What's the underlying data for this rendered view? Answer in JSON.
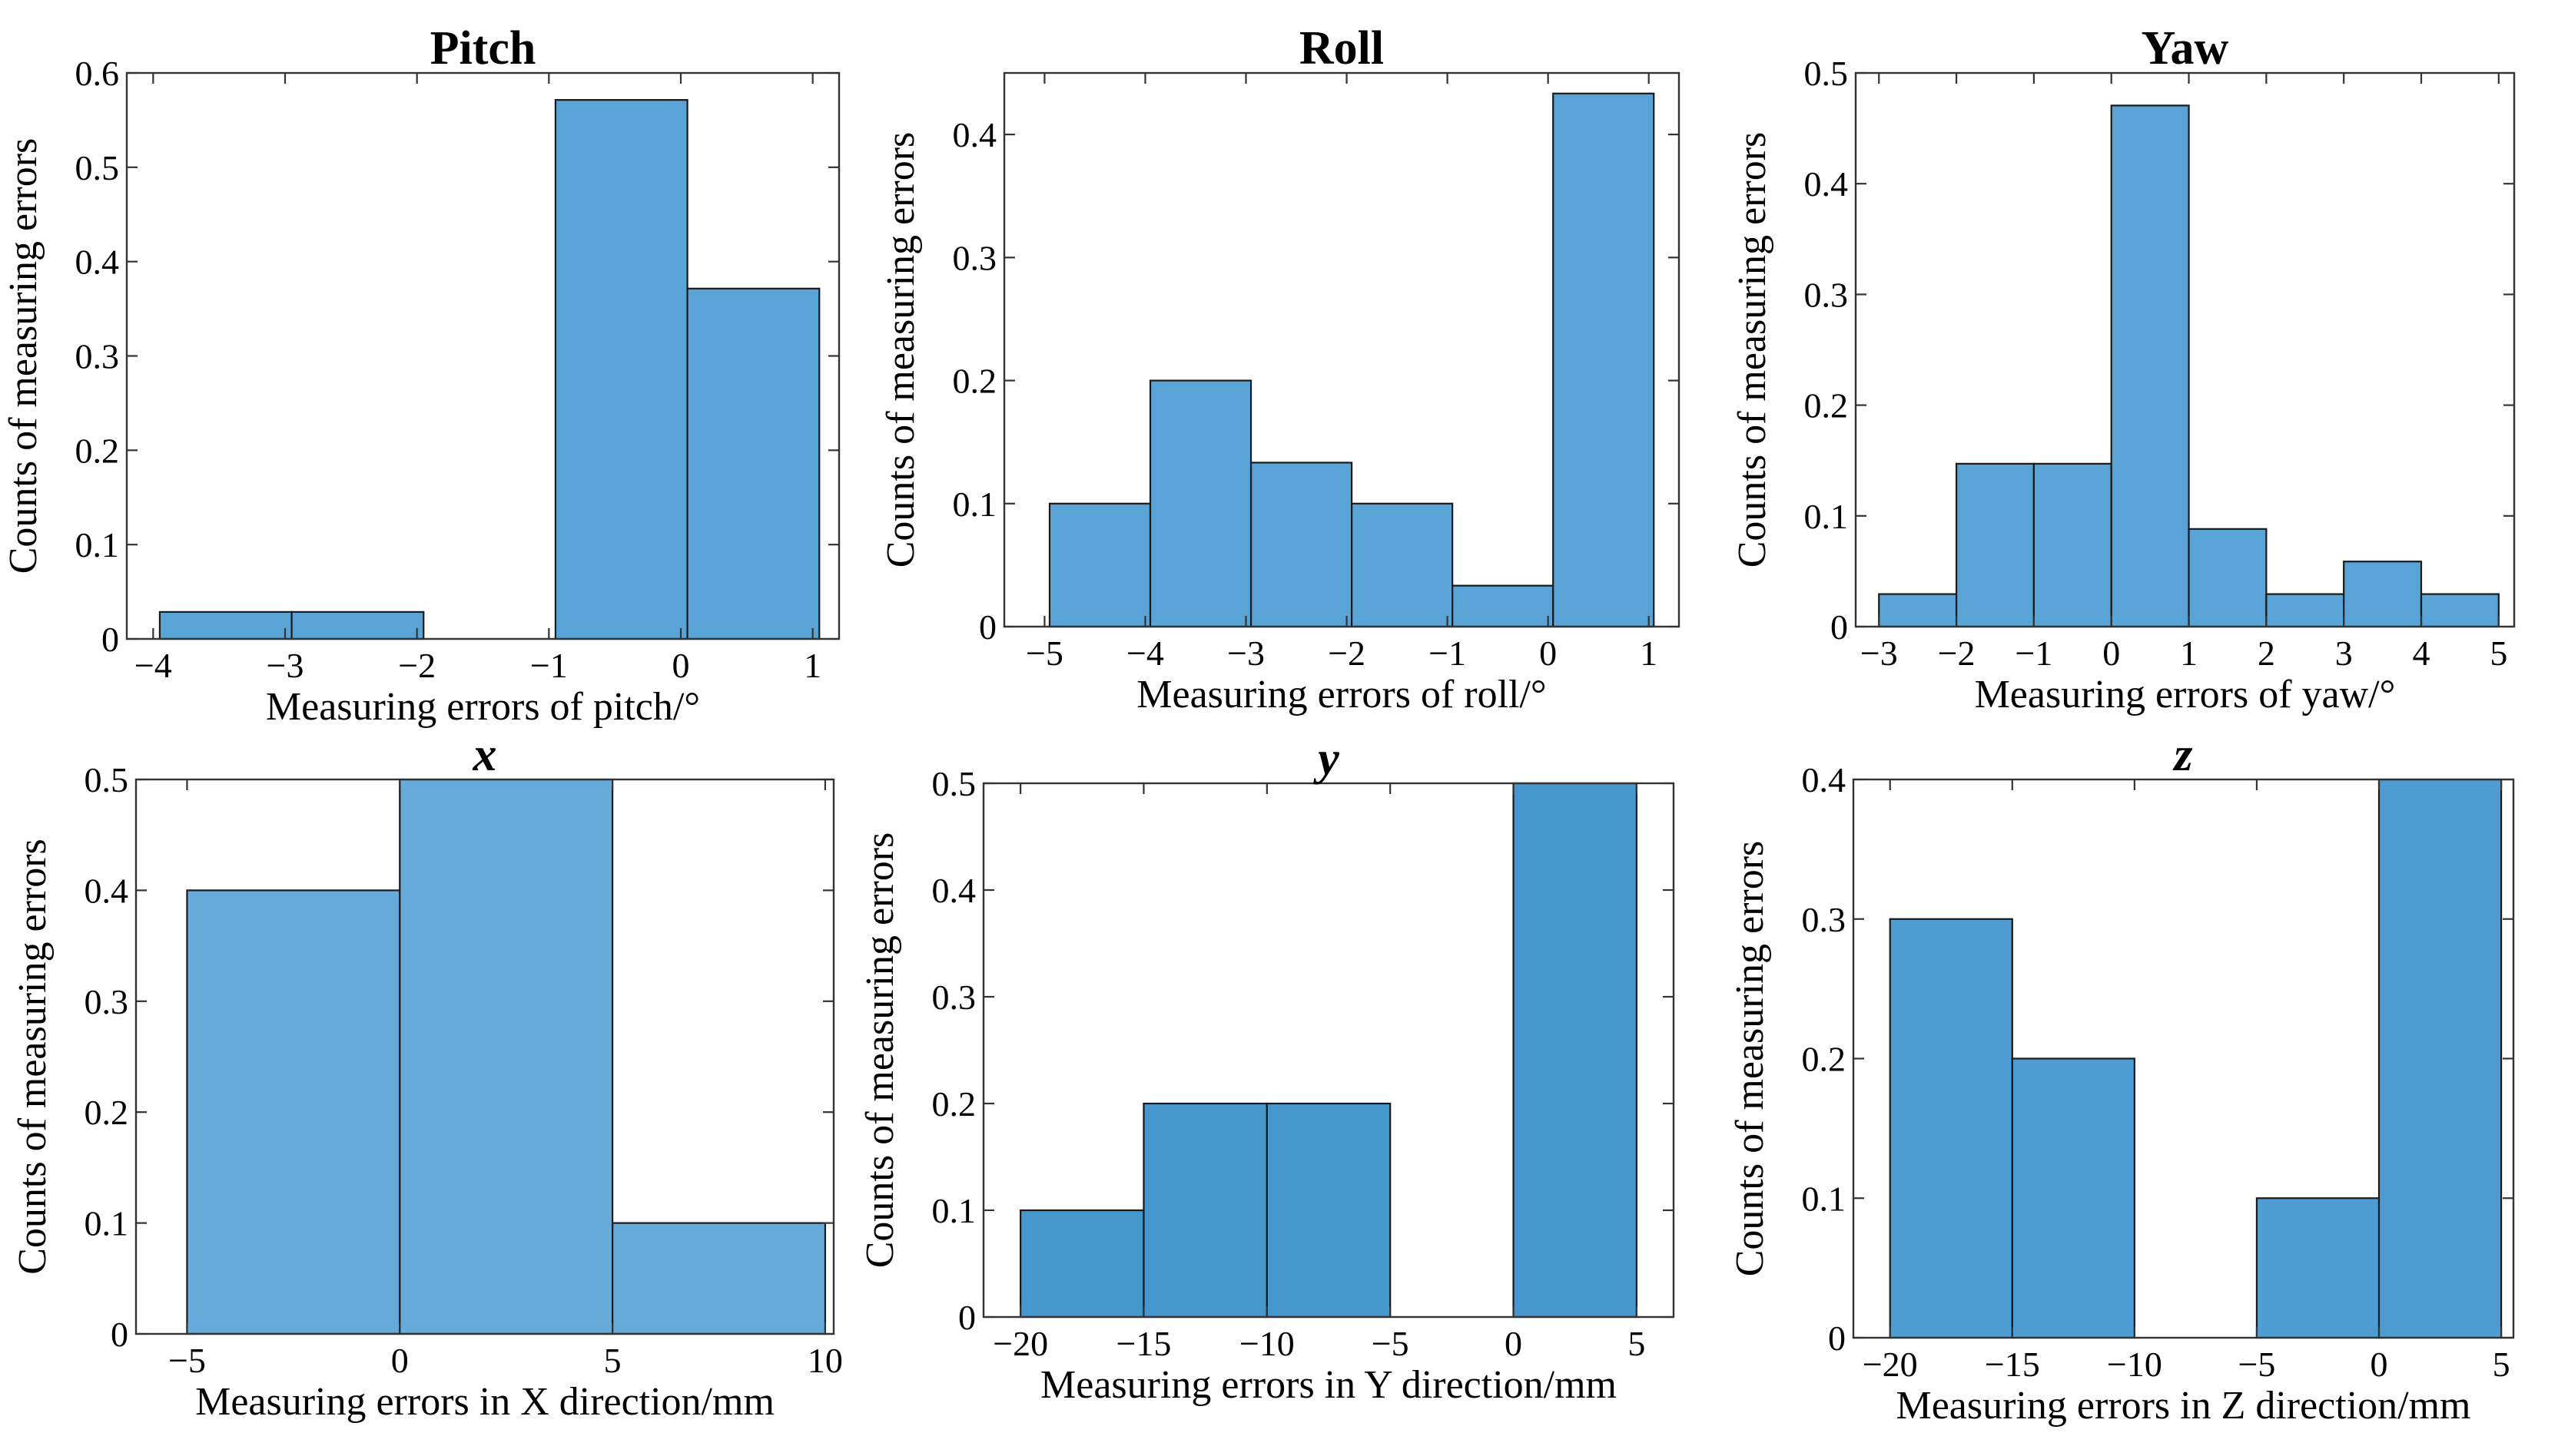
{
  "chart_data": [
    {
      "type": "bar",
      "title": "Pitch",
      "title_style": "normal",
      "xlabel": "Measuring errors of pitch/°",
      "ylabel": "Counts of measuring errors",
      "xlim": [
        -4.2,
        1.2
      ],
      "ylim": [
        0,
        0.6
      ],
      "xticks": [
        -4,
        -3,
        -2,
        -1,
        0,
        1
      ],
      "yticks": [
        0,
        0.1,
        0.2,
        0.3,
        0.4,
        0.5,
        0.6
      ],
      "ytick_labels": [
        "0",
        "0.1",
        "0.2",
        "0.3",
        "0.4",
        "0.5",
        "0.6"
      ],
      "bar_color": "#5aa3d6",
      "bins": [
        {
          "x0": -3.95,
          "x1": -2.95,
          "value": 0.0286
        },
        {
          "x0": -2.95,
          "x1": -1.95,
          "value": 0.0286
        },
        {
          "x0": -1.95,
          "x1": -0.95,
          "value": 0
        },
        {
          "x0": -0.95,
          "x1": 0.05,
          "value": 0.5714
        },
        {
          "x0": 0.05,
          "x1": 1.05,
          "value": 0.3714
        }
      ]
    },
    {
      "type": "bar",
      "title": "Roll",
      "title_style": "normal",
      "xlabel": "Measuring errors of roll/°",
      "ylabel": "Counts of measuring errors",
      "xlim": [
        -5.4,
        1.3
      ],
      "ylim": [
        0,
        0.45
      ],
      "xticks": [
        -5,
        -4,
        -3,
        -2,
        -1,
        0,
        1
      ],
      "yticks": [
        0,
        0.1,
        0.2,
        0.3,
        0.4
      ],
      "ytick_labels": [
        "0",
        "0.1",
        "0.2",
        "0.3",
        "0.4"
      ],
      "bar_color": "#5aa3d6",
      "bins": [
        {
          "x0": -4.95,
          "x1": -3.95,
          "value": 0.1
        },
        {
          "x0": -3.95,
          "x1": -2.95,
          "value": 0.2
        },
        {
          "x0": -2.95,
          "x1": -1.95,
          "value": 0.1333
        },
        {
          "x0": -1.95,
          "x1": -0.95,
          "value": 0.1
        },
        {
          "x0": -0.95,
          "x1": 0.05,
          "value": 0.0333
        },
        {
          "x0": 0.05,
          "x1": 1.05,
          "value": 0.4333
        }
      ]
    },
    {
      "type": "bar",
      "title": "Yaw",
      "title_style": "normal",
      "xlabel": "Measuring errors of yaw/°",
      "ylabel": "Counts of measuring errors",
      "xlim": [
        -3.3,
        5.2
      ],
      "ylim": [
        0,
        0.5
      ],
      "xticks": [
        -3,
        -2,
        -1,
        0,
        1,
        2,
        3,
        4,
        5
      ],
      "yticks": [
        0,
        0.1,
        0.2,
        0.3,
        0.4,
        0.5
      ],
      "ytick_labels": [
        "0",
        "0.1",
        "0.2",
        "0.3",
        "0.4",
        "0.5"
      ],
      "bar_color": "#5aa3d6",
      "bins": [
        {
          "x0": -3.0,
          "x1": -2.0,
          "value": 0.0294
        },
        {
          "x0": -2.0,
          "x1": -1.0,
          "value": 0.1471
        },
        {
          "x0": -1.0,
          "x1": 0.0,
          "value": 0.1471
        },
        {
          "x0": 0.0,
          "x1": 1.0,
          "value": 0.4706
        },
        {
          "x0": 1.0,
          "x1": 2.0,
          "value": 0.0882
        },
        {
          "x0": 2.0,
          "x1": 3.0,
          "value": 0.0294
        },
        {
          "x0": 3.0,
          "x1": 4.0,
          "value": 0.0588
        },
        {
          "x0": 4.0,
          "x1": 5.0,
          "value": 0.0294
        }
      ]
    },
    {
      "type": "bar",
      "title": "x",
      "title_style": "italic",
      "xlabel": "Measuring errors in X direction/mm",
      "ylabel": "Counts of measuring errors",
      "xlim": [
        -6.2,
        10.2
      ],
      "ylim": [
        0,
        0.5
      ],
      "xticks": [
        -5,
        0,
        5,
        10
      ],
      "yticks": [
        0,
        0.1,
        0.2,
        0.3,
        0.4,
        0.5
      ],
      "ytick_labels": [
        "0",
        "0.1",
        "0.2",
        "0.3",
        "0.4",
        "0.5"
      ],
      "bar_color": "#66aad9",
      "bins": [
        {
          "x0": -5.0,
          "x1": 0.0,
          "value": 0.4
        },
        {
          "x0": 0.0,
          "x1": 5.0,
          "value": 0.5
        },
        {
          "x0": 5.0,
          "x1": 10.0,
          "value": 0.1
        }
      ]
    },
    {
      "type": "bar",
      "title": "y",
      "title_style": "italic",
      "xlabel": "Measuring errors in Y direction/mm",
      "ylabel": "Counts of measuring errors",
      "xlim": [
        -21.5,
        6.5
      ],
      "ylim": [
        0,
        0.5
      ],
      "xticks": [
        -20,
        -15,
        -10,
        -5,
        0,
        5
      ],
      "yticks": [
        0,
        0.1,
        0.2,
        0.3,
        0.4,
        0.5
      ],
      "ytick_labels": [
        "0",
        "0.1",
        "0.2",
        "0.3",
        "0.4",
        "0.5"
      ],
      "bar_color": "#4797cf",
      "bins": [
        {
          "x0": -20.0,
          "x1": -15.0,
          "value": 0.1
        },
        {
          "x0": -15.0,
          "x1": -10.0,
          "value": 0.2
        },
        {
          "x0": -10.0,
          "x1": -5.0,
          "value": 0.2
        },
        {
          "x0": -5.0,
          "x1": 0.0,
          "value": 0
        },
        {
          "x0": 0.0,
          "x1": 5.0,
          "value": 0.5
        }
      ]
    },
    {
      "type": "bar",
      "title": "z",
      "title_style": "italic",
      "xlabel": "Measuring errors in Z direction/mm",
      "ylabel": "Counts of measuring errors",
      "xlim": [
        -21.5,
        5.5
      ],
      "ylim": [
        0,
        0.4
      ],
      "xticks": [
        -20,
        -15,
        -10,
        -5,
        0,
        5
      ],
      "yticks": [
        0,
        0.1,
        0.2,
        0.3,
        0.4
      ],
      "ytick_labels": [
        "0",
        "0.1",
        "0.2",
        "0.3",
        "0.4"
      ],
      "bar_color": "#4f9cd2",
      "bins": [
        {
          "x0": -20.0,
          "x1": -15.0,
          "value": 0.3
        },
        {
          "x0": -15.0,
          "x1": -10.0,
          "value": 0.2
        },
        {
          "x0": -10.0,
          "x1": -5.0,
          "value": 0
        },
        {
          "x0": -5.0,
          "x1": 0.0,
          "value": 0.1
        },
        {
          "x0": 0.0,
          "x1": 5.0,
          "value": 0.4
        }
      ]
    }
  ]
}
